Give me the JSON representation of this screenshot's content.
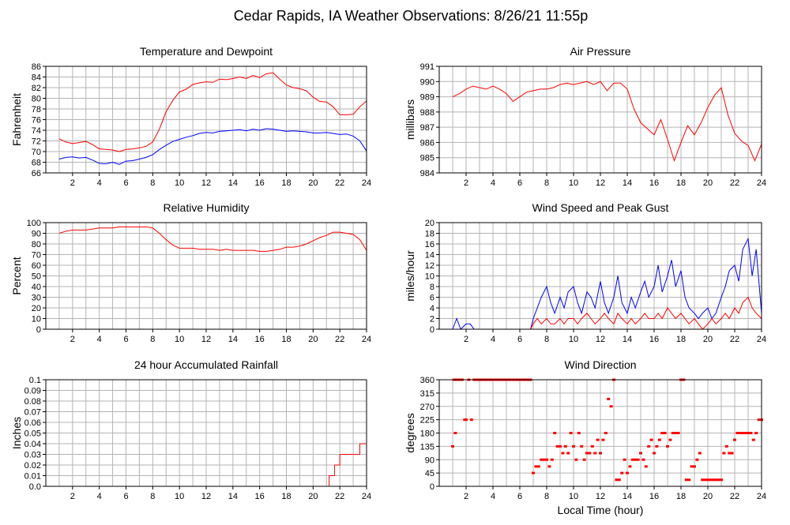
{
  "page_title": "Cedar Rapids, IA Weather Observations: 8/26/21 11:55p",
  "xlabel": "Local Time (hour)",
  "chart_data": [
    {
      "id": "temperature",
      "type": "line",
      "title": "Temperature and Dewpoint",
      "ylabel": "Fahrenheit",
      "xlim": [
        0,
        24
      ],
      "ylim": [
        66,
        86
      ],
      "xticks": [
        2,
        4,
        6,
        8,
        10,
        12,
        14,
        16,
        18,
        20,
        22,
        24
      ],
      "yticks": [
        66,
        68,
        70,
        72,
        74,
        76,
        78,
        80,
        82,
        84,
        86
      ],
      "grid": true,
      "series": [
        {
          "color": "#ff0000",
          "x": [
            1.0,
            1.5,
            2.0,
            2.5,
            3.0,
            3.5,
            4.0,
            4.5,
            5.0,
            5.5,
            6.0,
            6.5,
            7.0,
            7.5,
            8.0,
            8.5,
            9.0,
            9.5,
            10.0,
            10.5,
            11.0,
            11.5,
            12.0,
            12.5,
            13.0,
            13.5,
            14.0,
            14.5,
            15.0,
            15.5,
            16.0,
            16.5,
            17.0,
            17.5,
            18.0,
            18.5,
            19.0,
            19.5,
            20.0,
            20.5,
            21.0,
            21.5,
            22.0,
            22.5,
            23.0,
            23.5,
            24.0
          ],
          "y": [
            72.4,
            71.8,
            71.5,
            71.7,
            71.9,
            71.3,
            70.5,
            70.4,
            70.3,
            70.0,
            70.4,
            70.5,
            70.7,
            71.0,
            71.8,
            74.2,
            77.5,
            79.6,
            81.2,
            81.7,
            82.6,
            82.9,
            83.1,
            83.0,
            83.6,
            83.5,
            83.7,
            84.0,
            83.7,
            84.3,
            83.9,
            84.6,
            84.8,
            83.6,
            82.5,
            82.0,
            81.8,
            81.4,
            80.2,
            79.4,
            79.3,
            78.4,
            76.9,
            76.9,
            77.0,
            78.4,
            79.5
          ]
        },
        {
          "color": "#0000ff",
          "x": [
            1.0,
            1.5,
            2.0,
            2.5,
            3.0,
            3.5,
            4.0,
            4.5,
            5.0,
            5.5,
            6.0,
            6.5,
            7.0,
            7.5,
            8.0,
            8.5,
            9.0,
            9.5,
            10.0,
            10.5,
            11.0,
            11.5,
            12.0,
            12.5,
            13.0,
            13.5,
            14.0,
            14.5,
            15.0,
            15.5,
            16.0,
            16.5,
            17.0,
            17.5,
            18.0,
            18.5,
            19.0,
            19.5,
            20.0,
            20.5,
            21.0,
            21.5,
            22.0,
            22.5,
            23.0,
            23.5,
            24.0
          ],
          "y": [
            68.6,
            68.9,
            69.0,
            68.8,
            68.9,
            68.4,
            67.8,
            67.7,
            68.0,
            67.6,
            68.2,
            68.3,
            68.6,
            68.9,
            69.4,
            70.4,
            71.2,
            71.9,
            72.3,
            72.7,
            73.0,
            73.4,
            73.6,
            73.5,
            73.8,
            73.9,
            74.0,
            74.1,
            73.9,
            74.2,
            74.0,
            74.3,
            74.2,
            74.0,
            73.8,
            73.9,
            73.8,
            73.7,
            73.5,
            73.5,
            73.6,
            73.4,
            73.2,
            73.3,
            72.9,
            72.0,
            70.1
          ]
        }
      ]
    },
    {
      "id": "pressure",
      "type": "line",
      "title": "Air Pressure",
      "ylabel": "millibars",
      "xlim": [
        0,
        24
      ],
      "ylim": [
        984,
        991
      ],
      "xticks": [
        2,
        4,
        6,
        8,
        10,
        12,
        14,
        16,
        18,
        20,
        22,
        24
      ],
      "yticks": [
        984,
        985,
        986,
        987,
        988,
        989,
        990,
        991
      ],
      "grid": true,
      "series": [
        {
          "color": "#ff0000",
          "x": [
            1.0,
            1.5,
            2.0,
            2.5,
            3.0,
            3.5,
            4.0,
            4.5,
            5.0,
            5.5,
            6.0,
            6.5,
            7.0,
            7.5,
            8.0,
            8.5,
            9.0,
            9.5,
            10.0,
            10.5,
            11.0,
            11.5,
            12.0,
            12.5,
            13.0,
            13.5,
            14.0,
            14.5,
            15.0,
            15.5,
            16.0,
            16.5,
            17.0,
            17.5,
            18.0,
            18.5,
            19.0,
            19.5,
            20.0,
            20.5,
            21.0,
            21.5,
            22.0,
            22.5,
            23.0,
            23.5,
            24.0
          ],
          "y": [
            989.0,
            989.2,
            989.5,
            989.7,
            989.6,
            989.5,
            989.7,
            989.5,
            989.2,
            988.7,
            989.0,
            989.3,
            989.4,
            989.5,
            989.5,
            989.6,
            989.8,
            989.9,
            989.8,
            989.9,
            990.0,
            989.8,
            990.0,
            989.4,
            989.9,
            989.9,
            989.5,
            988.2,
            987.3,
            986.9,
            986.5,
            987.5,
            986.2,
            984.8,
            986.0,
            987.1,
            986.5,
            987.3,
            988.3,
            989.1,
            989.6,
            987.8,
            986.6,
            986.1,
            985.8,
            984.8,
            985.9
          ]
        }
      ]
    },
    {
      "id": "humidity",
      "type": "line",
      "title": "Relative Humidity",
      "ylabel": "Percent",
      "xlim": [
        0,
        24
      ],
      "ylim": [
        0,
        100
      ],
      "xticks": [
        2,
        4,
        6,
        8,
        10,
        12,
        14,
        16,
        18,
        20,
        22,
        24
      ],
      "yticks": [
        0,
        10,
        20,
        30,
        40,
        50,
        60,
        70,
        80,
        90,
        100
      ],
      "grid": true,
      "series": [
        {
          "color": "#ff0000",
          "x": [
            1.0,
            1.5,
            2.0,
            2.5,
            3.0,
            3.5,
            4.0,
            4.5,
            5.0,
            5.5,
            6.0,
            6.5,
            7.0,
            7.5,
            8.0,
            8.5,
            9.0,
            9.5,
            10.0,
            10.5,
            11.0,
            11.5,
            12.0,
            12.5,
            13.0,
            13.5,
            14.0,
            14.5,
            15.0,
            15.5,
            16.0,
            16.5,
            17.0,
            17.5,
            18.0,
            18.5,
            19.0,
            19.5,
            20.0,
            20.5,
            21.0,
            21.5,
            22.0,
            22.5,
            23.0,
            23.5,
            24.0
          ],
          "y": [
            90,
            92,
            93,
            93,
            93,
            94,
            95,
            95,
            95,
            96,
            96,
            96,
            96,
            96,
            95,
            90,
            84,
            79,
            76,
            76,
            76,
            75,
            75,
            75,
            74,
            75,
            74,
            74,
            74,
            74,
            73,
            73,
            74,
            75,
            77,
            77,
            78,
            80,
            83,
            86,
            88,
            91,
            91,
            90,
            89,
            84,
            74
          ]
        }
      ]
    },
    {
      "id": "wind_speed",
      "type": "line",
      "title": "Wind Speed and Peak Gust",
      "ylabel": "miles/hour",
      "xlim": [
        0,
        24
      ],
      "ylim": [
        0,
        20
      ],
      "xticks": [
        2,
        4,
        6,
        8,
        10,
        12,
        14,
        16,
        18,
        20,
        22,
        24
      ],
      "yticks": [
        0,
        2,
        4,
        6,
        8,
        10,
        12,
        14,
        16,
        18,
        20
      ],
      "grid": true,
      "series": [
        {
          "color": "#0000ff",
          "x": [
            1.0,
            1.3,
            1.6,
            2.0,
            2.3,
            2.6,
            3.0,
            4.0,
            5.0,
            6.0,
            6.8,
            7.0,
            7.3,
            7.6,
            8.0,
            8.3,
            8.6,
            9.0,
            9.3,
            9.6,
            10.0,
            10.3,
            10.6,
            11.0,
            11.3,
            11.6,
            12.0,
            12.3,
            12.6,
            13.0,
            13.3,
            13.6,
            14.0,
            14.3,
            14.6,
            15.0,
            15.3,
            15.6,
            16.0,
            16.3,
            16.6,
            17.0,
            17.3,
            17.6,
            18.0,
            18.3,
            18.6,
            19.0,
            19.3,
            19.6,
            20.0,
            20.3,
            20.6,
            21.0,
            21.3,
            21.6,
            22.0,
            22.3,
            22.6,
            23.0,
            23.3,
            23.6,
            24.0
          ],
          "y": [
            0,
            2,
            0,
            1,
            1,
            0,
            0,
            0,
            0,
            0,
            0,
            2,
            4,
            6,
            8,
            5,
            3,
            6,
            4,
            7,
            8,
            5,
            3,
            7,
            6,
            4,
            9,
            5,
            3,
            6,
            10,
            5,
            3,
            6,
            4,
            7,
            9,
            6,
            8,
            12,
            7,
            10,
            13,
            8,
            11,
            6,
            4,
            3,
            2,
            3,
            4,
            2,
            3,
            6,
            8,
            11,
            12,
            9,
            15,
            17,
            10,
            15,
            3
          ]
        },
        {
          "color": "#ff0000",
          "x": [
            1.0,
            2.0,
            3.0,
            4.0,
            5.0,
            6.0,
            6.8,
            7.0,
            7.3,
            7.6,
            8.0,
            8.3,
            8.6,
            9.0,
            9.3,
            9.6,
            10.0,
            10.3,
            10.6,
            11.0,
            11.3,
            11.6,
            12.0,
            12.3,
            12.6,
            13.0,
            13.3,
            13.6,
            14.0,
            14.3,
            14.6,
            15.0,
            15.3,
            15.6,
            16.0,
            16.3,
            16.6,
            17.0,
            17.3,
            17.6,
            18.0,
            18.3,
            18.6,
            19.0,
            19.3,
            19.6,
            20.0,
            20.3,
            20.6,
            21.0,
            21.3,
            21.6,
            22.0,
            22.3,
            22.6,
            23.0,
            23.3,
            23.6,
            24.0
          ],
          "y": [
            0,
            0,
            0,
            0,
            0,
            0,
            0,
            1,
            2,
            1,
            2,
            1,
            1,
            2,
            1,
            2,
            2,
            1,
            2,
            3,
            2,
            1,
            2,
            3,
            2,
            1,
            3,
            2,
            1,
            2,
            1,
            2,
            3,
            2,
            2,
            3,
            2,
            4,
            3,
            2,
            3,
            2,
            1,
            2,
            1,
            0,
            1,
            2,
            1,
            2,
            3,
            2,
            4,
            3,
            5,
            6,
            4,
            3,
            2
          ]
        }
      ]
    },
    {
      "id": "rainfall",
      "type": "line",
      "title": "24 hour Accumulated Rainfall",
      "ylabel": "Inches",
      "xlim": [
        0,
        24
      ],
      "ylim": [
        0,
        0.1
      ],
      "xticks": [
        2,
        4,
        6,
        8,
        10,
        12,
        14,
        16,
        18,
        20,
        22,
        24
      ],
      "yticks": [
        "0.0",
        "0.01",
        "0.02",
        "0.03",
        "0.04",
        "0.05",
        "0.06",
        "0.07",
        "0.08",
        "0.09",
        "0.1"
      ],
      "grid": true,
      "series": [
        {
          "color": "#ff0000",
          "x": [
            1.0,
            21.2,
            21.2,
            21.6,
            21.6,
            22.0,
            22.0,
            23.5,
            23.5,
            24.0
          ],
          "y": [
            0,
            0,
            0.01,
            0.01,
            0.02,
            0.02,
            0.03,
            0.03,
            0.04,
            0.04
          ]
        }
      ]
    },
    {
      "id": "wind_direction",
      "type": "scatter",
      "title": "Wind Direction",
      "ylabel": "degrees",
      "xlim": [
        0,
        24
      ],
      "ylim": [
        0,
        360
      ],
      "xticks": [
        2,
        4,
        6,
        8,
        10,
        12,
        14,
        16,
        18,
        20,
        22,
        24
      ],
      "yticks": [
        0,
        45,
        90,
        135,
        180,
        225,
        270,
        315,
        360
      ],
      "grid": true,
      "series": [
        {
          "color": "#ff0000",
          "x": [
            1.0,
            1.1,
            1.2,
            1.3,
            1.5,
            1.7,
            1.9,
            2.0,
            2.2,
            2.4,
            2.6,
            2.8,
            3.0,
            3.2,
            3.4,
            3.6,
            3.8,
            4.0,
            4.2,
            4.4,
            4.6,
            4.8,
            5.0,
            5.2,
            5.4,
            5.6,
            5.8,
            6.0,
            6.2,
            6.4,
            6.6,
            6.8,
            7.0,
            7.2,
            7.4,
            7.6,
            7.8,
            8.0,
            8.2,
            8.4,
            8.6,
            8.8,
            9.0,
            9.2,
            9.4,
            9.6,
            9.8,
            10.0,
            10.2,
            10.4,
            10.6,
            10.8,
            11.0,
            11.2,
            11.4,
            11.6,
            11.8,
            12.0,
            12.2,
            12.4,
            12.6,
            12.8,
            13.0,
            13.2,
            13.4,
            13.6,
            13.8,
            14.0,
            14.2,
            14.4,
            14.6,
            14.8,
            15.0,
            15.2,
            15.4,
            15.6,
            15.8,
            16.0,
            16.2,
            16.4,
            16.6,
            16.8,
            17.0,
            17.2,
            17.4,
            17.6,
            17.8,
            18.0,
            18.2,
            18.4,
            18.6,
            18.8,
            19.0,
            19.2,
            19.4,
            19.6,
            19.8,
            20.0,
            20.2,
            20.4,
            20.6,
            20.8,
            21.0,
            21.2,
            21.4,
            21.6,
            21.8,
            22.0,
            22.2,
            22.4,
            22.6,
            22.8,
            23.0,
            23.2,
            23.4,
            23.6,
            23.8,
            24.0
          ],
          "y": [
            135,
            360,
            180,
            360,
            360,
            360,
            225,
            225,
            360,
            225,
            360,
            360,
            360,
            360,
            360,
            360,
            360,
            360,
            360,
            360,
            360,
            360,
            360,
            360,
            360,
            360,
            360,
            360,
            360,
            360,
            360,
            360,
            45,
            67,
            67,
            90,
            90,
            90,
            67,
            90,
            180,
            135,
            135,
            112,
            135,
            112,
            180,
            135,
            90,
            180,
            135,
            90,
            112,
            112,
            135,
            112,
            157,
            112,
            157,
            180,
            295,
            270,
            360,
            22,
            22,
            45,
            90,
            45,
            67,
            90,
            90,
            90,
            112,
            90,
            67,
            135,
            157,
            112,
            135,
            157,
            180,
            180,
            135,
            157,
            180,
            180,
            180,
            360,
            360,
            22,
            22,
            67,
            67,
            90,
            112,
            22,
            22,
            22,
            22,
            22,
            22,
            22,
            22,
            112,
            135,
            112,
            112,
            157,
            180,
            180,
            180,
            180,
            180,
            180,
            157,
            180,
            225,
            225
          ]
        }
      ]
    }
  ]
}
